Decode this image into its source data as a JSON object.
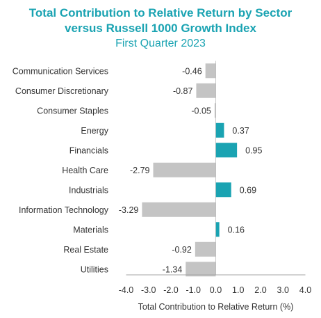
{
  "chart_data": {
    "type": "bar",
    "orientation": "horizontal",
    "title": "Total Contribution to Relative Return by Sector",
    "title_line2": "versus Russell 1000 Growth Index",
    "subtitle": "First Quarter 2023",
    "xlabel": "Total Contribution to Relative Return (%)",
    "ylabel": "",
    "xlim": [
      -4.0,
      4.0
    ],
    "xticks": [
      "-4.0",
      "-3.0",
      "-2.0",
      "-1.0",
      "0.0",
      "1.0",
      "2.0",
      "3.0",
      "4.0"
    ],
    "grid": false,
    "legend": "none",
    "categories": [
      "Communication Services",
      "Consumer Discretionary",
      "Consumer Staples",
      "Energy",
      "Financials",
      "Health Care",
      "Industrials",
      "Information Technology",
      "Materials",
      "Real Estate",
      "Utilities"
    ],
    "values": [
      -0.46,
      -0.87,
      -0.05,
      0.37,
      0.95,
      -2.79,
      0.69,
      -3.29,
      0.16,
      -0.92,
      -1.34
    ],
    "value_labels": [
      "-0.46",
      "-0.87",
      "-0.05",
      "0.37",
      "0.95",
      "-2.79",
      "0.69",
      "-3.29",
      "0.16",
      "-0.92",
      "-1.34"
    ],
    "colors": {
      "positive": "#1aa3b2",
      "negative": "#c4c4c4",
      "title": "#1aa3b2",
      "text": "#333333",
      "axis": "#a6a6a6"
    }
  }
}
